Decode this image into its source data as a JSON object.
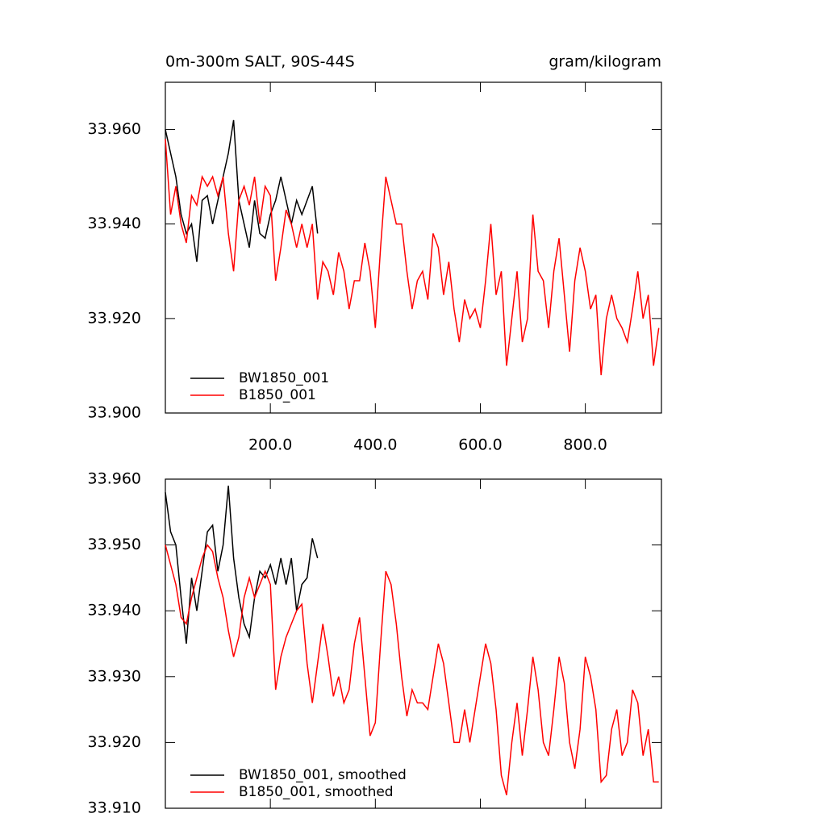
{
  "chart_data": [
    {
      "type": "line",
      "title": "0m-300m SALT, 90S-44S",
      "units": "gram/kilogram",
      "xlim": [
        0,
        945
      ],
      "ylim": [
        33.9,
        33.97
      ],
      "xticks": [
        {
          "value": 200,
          "label": "200.0"
        },
        {
          "value": 400,
          "label": "400.0"
        },
        {
          "value": 600,
          "label": "600.0"
        },
        {
          "value": 800,
          "label": "800.0"
        }
      ],
      "yticks": [
        {
          "value": 33.9,
          "label": "33.900"
        },
        {
          "value": 33.92,
          "label": "33.920"
        },
        {
          "value": 33.94,
          "label": "33.940"
        },
        {
          "value": 33.96,
          "label": "33.960"
        }
      ],
      "series": [
        {
          "name": "BW1850_001",
          "color": "#000000",
          "x": [
            0,
            10,
            20,
            30,
            40,
            50,
            60,
            70,
            80,
            90,
            100,
            110,
            120,
            130,
            140,
            150,
            160,
            170,
            180,
            190,
            200,
            210,
            220,
            230,
            240,
            250,
            260,
            270,
            280,
            290
          ],
          "values": [
            33.96,
            33.955,
            33.95,
            33.942,
            33.938,
            33.94,
            33.932,
            33.945,
            33.946,
            33.94,
            33.945,
            33.95,
            33.955,
            33.962,
            33.945,
            33.94,
            33.935,
            33.945,
            33.938,
            33.937,
            33.942,
            33.945,
            33.95,
            33.945,
            33.94,
            33.945,
            33.942,
            33.945,
            33.948,
            33.938
          ]
        },
        {
          "name": "B1850_001",
          "color": "#ff0000",
          "x": [
            0,
            10,
            20,
            30,
            40,
            50,
            60,
            70,
            80,
            90,
            100,
            110,
            120,
            130,
            140,
            150,
            160,
            170,
            180,
            190,
            200,
            210,
            220,
            230,
            240,
            250,
            260,
            270,
            280,
            290,
            300,
            310,
            320,
            330,
            340,
            350,
            360,
            370,
            380,
            390,
            400,
            410,
            420,
            430,
            440,
            450,
            460,
            470,
            480,
            490,
            500,
            510,
            520,
            530,
            540,
            550,
            560,
            570,
            580,
            590,
            600,
            610,
            620,
            630,
            640,
            650,
            660,
            670,
            680,
            690,
            700,
            710,
            720,
            730,
            740,
            750,
            760,
            770,
            780,
            790,
            800,
            810,
            820,
            830,
            840,
            850,
            860,
            870,
            880,
            890,
            900,
            910,
            920,
            930,
            940
          ],
          "values": [
            33.958,
            33.942,
            33.948,
            33.94,
            33.936,
            33.946,
            33.944,
            33.95,
            33.948,
            33.95,
            33.946,
            33.95,
            33.938,
            33.93,
            33.945,
            33.948,
            33.944,
            33.95,
            33.94,
            33.948,
            33.946,
            33.928,
            33.935,
            33.943,
            33.94,
            33.935,
            33.94,
            33.935,
            33.94,
            33.924,
            33.932,
            33.93,
            33.925,
            33.934,
            33.93,
            33.922,
            33.928,
            33.928,
            33.936,
            33.93,
            33.918,
            33.935,
            33.95,
            33.945,
            33.94,
            33.94,
            33.93,
            33.922,
            33.928,
            33.93,
            33.924,
            33.938,
            33.935,
            33.925,
            33.932,
            33.922,
            33.915,
            33.924,
            33.92,
            33.922,
            33.918,
            33.928,
            33.94,
            33.925,
            33.93,
            33.91,
            33.92,
            33.93,
            33.915,
            33.92,
            33.942,
            33.93,
            33.928,
            33.918,
            33.93,
            33.937,
            33.925,
            33.913,
            33.928,
            33.935,
            33.93,
            33.922,
            33.925,
            33.908,
            33.92,
            33.925,
            33.92,
            33.918,
            33.915,
            33.922,
            33.93,
            33.92,
            33.925,
            33.91,
            33.918
          ]
        }
      ]
    },
    {
      "type": "line",
      "xlim": [
        0,
        945
      ],
      "ylim": [
        33.91,
        33.96
      ],
      "xticks": [
        200,
        400,
        600,
        800
      ],
      "yticks": [
        {
          "value": 33.91,
          "label": "33.910"
        },
        {
          "value": 33.92,
          "label": "33.920"
        },
        {
          "value": 33.93,
          "label": "33.930"
        },
        {
          "value": 33.94,
          "label": "33.940"
        },
        {
          "value": 33.95,
          "label": "33.950"
        },
        {
          "value": 33.96,
          "label": "33.960"
        }
      ],
      "series": [
        {
          "name": "BW1850_001, smoothed",
          "color": "#000000",
          "x": [
            0,
            10,
            20,
            30,
            40,
            50,
            60,
            70,
            80,
            90,
            100,
            110,
            120,
            130,
            140,
            150,
            160,
            170,
            180,
            190,
            200,
            210,
            220,
            230,
            240,
            250,
            260,
            270,
            280,
            290
          ],
          "values": [
            33.958,
            33.952,
            33.95,
            33.942,
            33.935,
            33.945,
            33.94,
            33.946,
            33.952,
            33.953,
            33.946,
            33.95,
            33.959,
            33.948,
            33.942,
            33.938,
            33.936,
            33.942,
            33.946,
            33.945,
            33.947,
            33.944,
            33.948,
            33.944,
            33.948,
            33.94,
            33.944,
            33.945,
            33.951,
            33.948
          ]
        },
        {
          "name": "B1850_001, smoothed",
          "color": "#ff0000",
          "x": [
            0,
            10,
            20,
            30,
            40,
            50,
            60,
            70,
            80,
            90,
            100,
            110,
            120,
            130,
            140,
            150,
            160,
            170,
            180,
            190,
            200,
            210,
            220,
            230,
            240,
            250,
            260,
            270,
            280,
            290,
            300,
            310,
            320,
            330,
            340,
            350,
            360,
            370,
            380,
            390,
            400,
            410,
            420,
            430,
            440,
            450,
            460,
            470,
            480,
            490,
            500,
            510,
            520,
            530,
            540,
            550,
            560,
            570,
            580,
            590,
            600,
            610,
            620,
            630,
            640,
            650,
            660,
            670,
            680,
            690,
            700,
            710,
            720,
            730,
            740,
            750,
            760,
            770,
            780,
            790,
            800,
            810,
            820,
            830,
            840,
            850,
            860,
            870,
            880,
            890,
            900,
            910,
            920,
            930,
            940
          ],
          "values": [
            33.95,
            33.947,
            33.944,
            33.939,
            33.938,
            33.942,
            33.945,
            33.948,
            33.95,
            33.949,
            33.945,
            33.942,
            33.937,
            33.933,
            33.936,
            33.942,
            33.945,
            33.942,
            33.944,
            33.946,
            33.944,
            33.928,
            33.933,
            33.936,
            33.938,
            33.94,
            33.941,
            33.932,
            33.926,
            33.932,
            33.938,
            33.933,
            33.927,
            33.93,
            33.926,
            33.928,
            33.935,
            33.939,
            33.93,
            33.921,
            33.923,
            33.935,
            33.946,
            33.944,
            33.938,
            33.93,
            33.924,
            33.928,
            33.926,
            33.926,
            33.925,
            33.93,
            33.935,
            33.932,
            33.926,
            33.92,
            33.92,
            33.925,
            33.92,
            33.925,
            33.93,
            33.935,
            33.932,
            33.925,
            33.915,
            33.912,
            33.92,
            33.926,
            33.918,
            33.925,
            33.933,
            33.928,
            33.92,
            33.918,
            33.925,
            33.933,
            33.929,
            33.92,
            33.916,
            33.922,
            33.933,
            33.93,
            33.925,
            33.914,
            33.915,
            33.922,
            33.925,
            33.918,
            33.92,
            33.928,
            33.926,
            33.918,
            33.922,
            33.914,
            33.914
          ]
        }
      ]
    }
  ]
}
